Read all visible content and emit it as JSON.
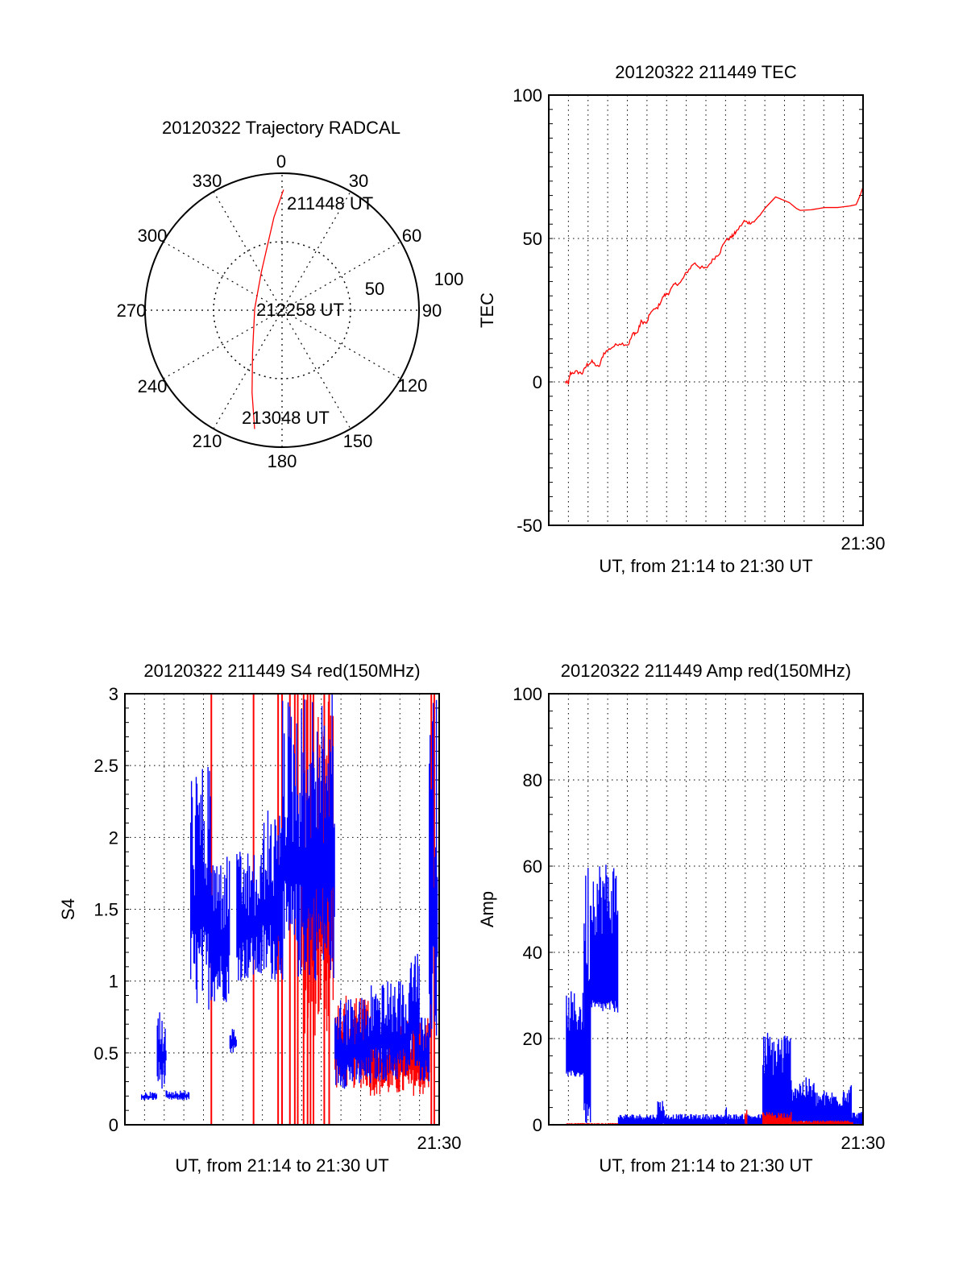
{
  "chart_data": [
    {
      "type": "polar",
      "title": "20120322 Trajectory RADCAL",
      "angle_labels": [
        "0",
        "30",
        "60",
        "90",
        "120",
        "150",
        "180",
        "210",
        "240",
        "270",
        "300",
        "330"
      ],
      "radius_labels": [
        "50",
        "100"
      ],
      "rlim": [
        0,
        100
      ],
      "trajectory": {
        "color": "#ff0000",
        "points_az_r": [
          [
            0.7,
            88
          ],
          [
            355,
            68
          ],
          [
            332,
            32
          ],
          [
            273,
            20
          ],
          [
            215,
            37.5
          ],
          [
            200,
            64
          ],
          [
            193,
            89
          ]
        ]
      },
      "annotations": [
        "211448 UT",
        "212258 UT",
        "213048 UT"
      ]
    },
    {
      "type": "line",
      "title": "20120322 211449 TEC",
      "xlabel": "UT, from 21:14 to 21:30 UT",
      "ylabel": "TEC",
      "xlim_minutes": [
        0,
        16
      ],
      "x_end_label": "21:30",
      "ylim": [
        -50,
        100
      ],
      "yticks": [
        "-50",
        "0",
        "50",
        "100"
      ],
      "grid": true,
      "series": [
        {
          "name": "TEC",
          "color": "#ff0000",
          "points": [
            [
              0.85,
              0
            ],
            [
              1.0,
              -0.5
            ],
            [
              1.1,
              3
            ],
            [
              1.4,
              3.5
            ],
            [
              1.7,
              3
            ],
            [
              1.95,
              6
            ],
            [
              2.2,
              7
            ],
            [
              2.55,
              5
            ],
            [
              2.8,
              10
            ],
            [
              3.2,
              12
            ],
            [
              3.6,
              13.5
            ],
            [
              4.05,
              13
            ],
            [
              4.3,
              17
            ],
            [
              4.5,
              17
            ],
            [
              4.7,
              21
            ],
            [
              5.0,
              20.5
            ],
            [
              5.15,
              24
            ],
            [
              5.55,
              26
            ],
            [
              5.85,
              30
            ],
            [
              6.1,
              31
            ],
            [
              6.4,
              34
            ],
            [
              6.7,
              34.5
            ],
            [
              7.0,
              38
            ],
            [
              7.4,
              41.5
            ],
            [
              7.7,
              40
            ],
            [
              8.0,
              39.5
            ],
            [
              8.4,
              43
            ],
            [
              8.7,
              45
            ],
            [
              8.95,
              49
            ],
            [
              9.3,
              50.5
            ],
            [
              9.5,
              52
            ],
            [
              9.95,
              56
            ],
            [
              10.2,
              55.5
            ],
            [
              10.5,
              56
            ],
            [
              11.0,
              60.5
            ],
            [
              11.55,
              64.5
            ],
            [
              11.9,
              63.5
            ],
            [
              12.25,
              62.5
            ],
            [
              12.6,
              60.5
            ],
            [
              12.8,
              59.8
            ],
            [
              13.35,
              60
            ],
            [
              14.05,
              60.8
            ],
            [
              14.7,
              60.8
            ],
            [
              15.3,
              61.3
            ],
            [
              15.65,
              61.8
            ],
            [
              15.85,
              65
            ],
            [
              16.0,
              68
            ]
          ]
        }
      ]
    },
    {
      "type": "line",
      "title": "20120322 211449 S4 red(150MHz)",
      "xlabel": "UT, from 21:14 to 21:30 UT",
      "ylabel": "S4",
      "xlim_minutes": [
        0,
        16
      ],
      "x_end_label": "21:30",
      "ylim": [
        0,
        3
      ],
      "yticks": [
        "0",
        "0.5",
        "1",
        "1.5",
        "2",
        "2.5",
        "3"
      ],
      "grid": true,
      "series": [
        {
          "name": "blue",
          "color": "#0000ff",
          "envelope_segments_t0_t1_lo_hi": [
            [
              0.85,
              1.65,
              0.17,
              0.23
            ],
            [
              1.65,
              2.1,
              0.25,
              0.82
            ],
            [
              2.1,
              3.3,
              0.17,
              0.24
            ],
            [
              3.35,
              4.4,
              0.8,
              2.5
            ],
            [
              4.4,
              5.35,
              0.85,
              1.9
            ],
            [
              5.35,
              5.7,
              0.5,
              0.68
            ],
            [
              5.7,
              7.0,
              1.0,
              1.9
            ],
            [
              7.0,
              7.95,
              1.0,
              2.2
            ],
            [
              7.95,
              10.7,
              1.0,
              3.0
            ],
            [
              10.7,
              12.5,
              0.25,
              0.9
            ],
            [
              12.5,
              14.5,
              0.3,
              1.0
            ],
            [
              14.5,
              15.0,
              0.4,
              1.2
            ],
            [
              15.0,
              15.5,
              0.3,
              0.75
            ],
            [
              15.5,
              15.9,
              0.5,
              3.0
            ]
          ]
        },
        {
          "name": "red",
          "color": "#ff0000",
          "spikes_minutes": [
            4.4,
            6.55,
            7.8,
            8.0,
            8.4,
            8.65,
            8.8,
            9.1,
            9.3,
            9.45,
            9.6,
            10.15,
            10.4,
            15.6,
            15.75
          ],
          "envelope_segments_t0_t1_lo_hi": [
            [
              9.0,
              10.6,
              0.6,
              3.0
            ],
            [
              10.7,
              12.5,
              0.25,
              0.9
            ],
            [
              12.5,
              15.5,
              0.2,
              0.75
            ]
          ]
        }
      ]
    },
    {
      "type": "line",
      "title": "20120322 211449 Amp red(150MHz)",
      "xlabel": "UT, from 21:14 to 21:30 UT",
      "ylabel": "Amp",
      "xlim_minutes": [
        0,
        16
      ],
      "x_end_label": "21:30",
      "ylim": [
        0,
        100
      ],
      "yticks": [
        "0",
        "20",
        "40",
        "60",
        "80",
        "100"
      ],
      "grid": true,
      "series": [
        {
          "name": "blue",
          "color": "#0000ff",
          "envelope_segments_t0_t1_lo_hi": [
            [
              0.9,
              1.8,
              11,
              31
            ],
            [
              1.8,
              2.15,
              0,
              63
            ],
            [
              2.15,
              3.55,
              26,
              62
            ],
            [
              3.55,
              5.55,
              0,
              2.5
            ],
            [
              5.55,
              5.9,
              0,
              6
            ],
            [
              5.9,
              9.0,
              0,
              2.5
            ],
            [
              9.0,
              9.06,
              0,
              5
            ],
            [
              9.06,
              10.9,
              0,
              2.5
            ],
            [
              10.9,
              12.3,
              0,
              22
            ],
            [
              12.3,
              13.5,
              0,
              11
            ],
            [
              13.5,
              15.0,
              0,
              8
            ],
            [
              15.0,
              15.4,
              0,
              10
            ],
            [
              15.4,
              16.0,
              0,
              3
            ]
          ]
        },
        {
          "name": "red",
          "color": "#ff0000",
          "envelope_segments_t0_t1_lo_hi": [
            [
              0.9,
              3.55,
              0,
              0.4
            ],
            [
              10.0,
              10.1,
              0,
              4
            ],
            [
              10.9,
              12.35,
              0,
              3
            ],
            [
              12.35,
              15.5,
              0,
              1
            ]
          ]
        }
      ]
    }
  ]
}
